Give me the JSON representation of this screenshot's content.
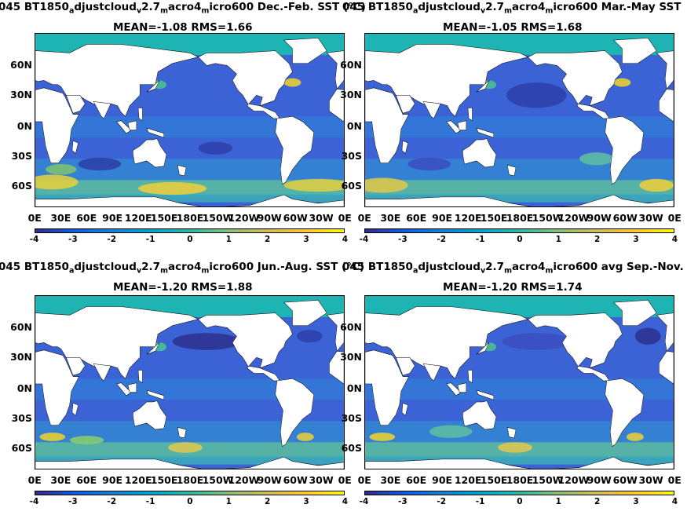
{
  "panels": [
    {
      "title_parts": [
        "045 BT1850",
        "_a",
        "djustcloud",
        "_v",
        "2.7",
        "_m",
        "acro4",
        "_m",
        "icro600  Dec.-Feb. SST (°C)"
      ],
      "overlap_text": "Mar.-May SST (",
      "stats": "MEAN=-1.08   RMS=1.66",
      "mean": -1.08,
      "rms": 1.66,
      "season": "DJF"
    },
    {
      "title_parts": [
        "045 BT1850",
        "_a",
        "djustcloud",
        "_v",
        "2.7",
        "_m",
        "acro4",
        "_m",
        "icro600 Mar.-May SST"
      ],
      "overlap_text": "",
      "stats": "MEAN=-1.05   RMS=1.68",
      "mean": -1.05,
      "rms": 1.68,
      "season": "MAM"
    },
    {
      "title_parts": [
        "045 BT1850",
        "_a",
        "djustcloud",
        "_v",
        "2.7",
        "_m",
        "acro4",
        "_m",
        "icro600 Jun.-Aug. SST (°C)"
      ],
      "overlap_text": "Sep.-Nov. SST (",
      "stats": "MEAN=-1.20   RMS=1.88",
      "mean": -1.2,
      "rms": 1.88,
      "season": "JJA"
    },
    {
      "title_parts": [
        "045 BT1850",
        "_a",
        "djustcloud",
        "_v",
        "2.7",
        "_m",
        "acro4",
        "_m",
        "icro600 avg Sep.-Nov. SST"
      ],
      "overlap_text": "",
      "stats": "MEAN=-1.20   RMS=1.74",
      "mean": -1.2,
      "rms": 1.74,
      "season": "SON"
    }
  ],
  "lat_labels": [
    "60N",
    "30N",
    "0N",
    "30S",
    "60S"
  ],
  "lon_labels": [
    "0E",
    "30E",
    "60E",
    "90E",
    "120E",
    "150E",
    "180E",
    "150W",
    "120W",
    "90W",
    "60W",
    "30W",
    "0E"
  ],
  "colorbar_ticks": [
    "-4",
    "-3",
    "-2",
    "-1",
    "0",
    "1",
    "2",
    "3",
    "4"
  ],
  "chart_data": [
    {
      "type": "heatmap",
      "title": "045 BT1850adjustcloudv2.7macro4micro600 Dec.-Feb. SST",
      "subtitle": "MEAN=-1.08   RMS=1.66",
      "colorbar_range": [
        -4,
        4
      ],
      "colormap": "parula",
      "x_ticks": [
        "0E",
        "30E",
        "60E",
        "90E",
        "120E",
        "150E",
        "180E",
        "150W",
        "120W",
        "90W",
        "60W",
        "30W",
        "0E"
      ],
      "y_ticks": [
        "60N",
        "30N",
        "0N",
        "30S",
        "60S"
      ]
    },
    {
      "type": "heatmap",
      "title": "045 BT1850adjustcloudv2.7macro4micro600 Mar.-May SST",
      "subtitle": "MEAN=-1.05   RMS=1.68",
      "colorbar_range": [
        -4,
        4
      ],
      "colormap": "parula",
      "x_ticks": [
        "0E",
        "30E",
        "60E",
        "90E",
        "120E",
        "150E",
        "180E",
        "150W",
        "120W",
        "90W",
        "60W",
        "30W",
        "0E"
      ],
      "y_ticks": [
        "60N",
        "30N",
        "0N",
        "30S",
        "60S"
      ]
    },
    {
      "type": "heatmap",
      "title": "045 BT1850adjustcloudv2.7macro4micro600 Jun.-Aug. SST",
      "subtitle": "MEAN=-1.20   RMS=1.88",
      "colorbar_range": [
        -4,
        4
      ],
      "colormap": "parula",
      "x_ticks": [
        "0E",
        "30E",
        "60E",
        "90E",
        "120E",
        "150E",
        "180E",
        "150W",
        "120W",
        "90W",
        "60W",
        "30W",
        "0E"
      ],
      "y_ticks": [
        "60N",
        "30N",
        "0N",
        "30S",
        "60S"
      ]
    },
    {
      "type": "heatmap",
      "title": "045 BT1850adjustcloudv2.7macro4micro600 avg Sep.-Nov. SST",
      "subtitle": "MEAN=-1.20   RMS=1.74",
      "colorbar_range": [
        -4,
        4
      ],
      "colormap": "parula",
      "x_ticks": [
        "0E",
        "30E",
        "60E",
        "90E",
        "120E",
        "150E",
        "180E",
        "150W",
        "120W",
        "90W",
        "60W",
        "30W",
        "0E"
      ],
      "y_ticks": [
        "60N",
        "30N",
        "0N",
        "30S",
        "60S"
      ]
    }
  ],
  "colors": {
    "ocean_base": "#3c63d6",
    "land": "#ffffff",
    "polar": "#1fb4b4",
    "warm": "#f2d42a"
  }
}
